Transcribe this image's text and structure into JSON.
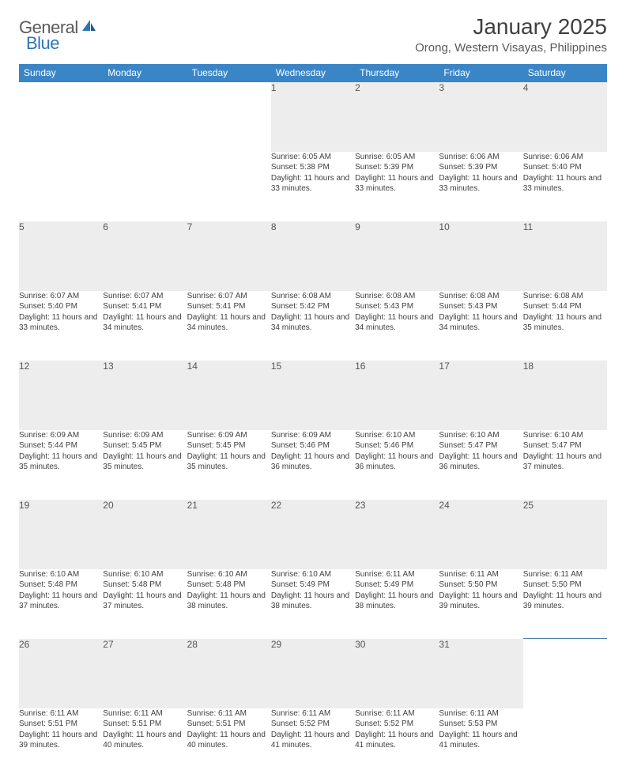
{
  "logo": {
    "text1": "General",
    "text2": "Blue"
  },
  "title": "January 2025",
  "location": "Orong, Western Visayas, Philippines",
  "colors": {
    "header_bg": "#3a85c6",
    "header_text": "#ffffff",
    "daynum_bg": "#ededed",
    "row_divider": "#4a7fa8",
    "body_text": "#404040",
    "logo_gray": "#5a5a5a",
    "logo_blue": "#2e75b6"
  },
  "weekdays": [
    "Sunday",
    "Monday",
    "Tuesday",
    "Wednesday",
    "Thursday",
    "Friday",
    "Saturday"
  ],
  "weeks": [
    [
      null,
      null,
      null,
      {
        "n": "1",
        "sr": "6:05 AM",
        "ss": "5:38 PM",
        "dl": "11 hours and 33 minutes."
      },
      {
        "n": "2",
        "sr": "6:05 AM",
        "ss": "5:39 PM",
        "dl": "11 hours and 33 minutes."
      },
      {
        "n": "3",
        "sr": "6:06 AM",
        "ss": "5:39 PM",
        "dl": "11 hours and 33 minutes."
      },
      {
        "n": "4",
        "sr": "6:06 AM",
        "ss": "5:40 PM",
        "dl": "11 hours and 33 minutes."
      }
    ],
    [
      {
        "n": "5",
        "sr": "6:07 AM",
        "ss": "5:40 PM",
        "dl": "11 hours and 33 minutes."
      },
      {
        "n": "6",
        "sr": "6:07 AM",
        "ss": "5:41 PM",
        "dl": "11 hours and 34 minutes."
      },
      {
        "n": "7",
        "sr": "6:07 AM",
        "ss": "5:41 PM",
        "dl": "11 hours and 34 minutes."
      },
      {
        "n": "8",
        "sr": "6:08 AM",
        "ss": "5:42 PM",
        "dl": "11 hours and 34 minutes."
      },
      {
        "n": "9",
        "sr": "6:08 AM",
        "ss": "5:43 PM",
        "dl": "11 hours and 34 minutes."
      },
      {
        "n": "10",
        "sr": "6:08 AM",
        "ss": "5:43 PM",
        "dl": "11 hours and 34 minutes."
      },
      {
        "n": "11",
        "sr": "6:08 AM",
        "ss": "5:44 PM",
        "dl": "11 hours and 35 minutes."
      }
    ],
    [
      {
        "n": "12",
        "sr": "6:09 AM",
        "ss": "5:44 PM",
        "dl": "11 hours and 35 minutes."
      },
      {
        "n": "13",
        "sr": "6:09 AM",
        "ss": "5:45 PM",
        "dl": "11 hours and 35 minutes."
      },
      {
        "n": "14",
        "sr": "6:09 AM",
        "ss": "5:45 PM",
        "dl": "11 hours and 35 minutes."
      },
      {
        "n": "15",
        "sr": "6:09 AM",
        "ss": "5:46 PM",
        "dl": "11 hours and 36 minutes."
      },
      {
        "n": "16",
        "sr": "6:10 AM",
        "ss": "5:46 PM",
        "dl": "11 hours and 36 minutes."
      },
      {
        "n": "17",
        "sr": "6:10 AM",
        "ss": "5:47 PM",
        "dl": "11 hours and 36 minutes."
      },
      {
        "n": "18",
        "sr": "6:10 AM",
        "ss": "5:47 PM",
        "dl": "11 hours and 37 minutes."
      }
    ],
    [
      {
        "n": "19",
        "sr": "6:10 AM",
        "ss": "5:48 PM",
        "dl": "11 hours and 37 minutes."
      },
      {
        "n": "20",
        "sr": "6:10 AM",
        "ss": "5:48 PM",
        "dl": "11 hours and 37 minutes."
      },
      {
        "n": "21",
        "sr": "6:10 AM",
        "ss": "5:48 PM",
        "dl": "11 hours and 38 minutes."
      },
      {
        "n": "22",
        "sr": "6:10 AM",
        "ss": "5:49 PM",
        "dl": "11 hours and 38 minutes."
      },
      {
        "n": "23",
        "sr": "6:11 AM",
        "ss": "5:49 PM",
        "dl": "11 hours and 38 minutes."
      },
      {
        "n": "24",
        "sr": "6:11 AM",
        "ss": "5:50 PM",
        "dl": "11 hours and 39 minutes."
      },
      {
        "n": "25",
        "sr": "6:11 AM",
        "ss": "5:50 PM",
        "dl": "11 hours and 39 minutes."
      }
    ],
    [
      {
        "n": "26",
        "sr": "6:11 AM",
        "ss": "5:51 PM",
        "dl": "11 hours and 39 minutes."
      },
      {
        "n": "27",
        "sr": "6:11 AM",
        "ss": "5:51 PM",
        "dl": "11 hours and 40 minutes."
      },
      {
        "n": "28",
        "sr": "6:11 AM",
        "ss": "5:51 PM",
        "dl": "11 hours and 40 minutes."
      },
      {
        "n": "29",
        "sr": "6:11 AM",
        "ss": "5:52 PM",
        "dl": "11 hours and 41 minutes."
      },
      {
        "n": "30",
        "sr": "6:11 AM",
        "ss": "5:52 PM",
        "dl": "11 hours and 41 minutes."
      },
      {
        "n": "31",
        "sr": "6:11 AM",
        "ss": "5:53 PM",
        "dl": "11 hours and 41 minutes."
      },
      null
    ]
  ],
  "labels": {
    "sunrise": "Sunrise:",
    "sunset": "Sunset:",
    "daylight": "Daylight:"
  }
}
